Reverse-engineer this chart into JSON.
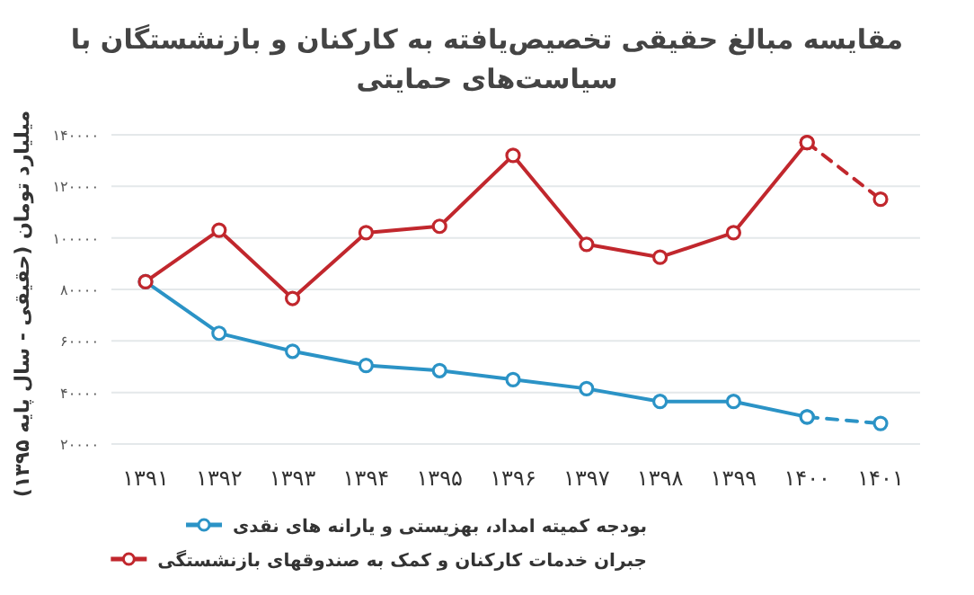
{
  "chart_data": {
    "type": "line",
    "title": "مقایسه مبالغ حقیقی تخصیص‌یافته به کارکنان و بازنشستگان با سیاست‌های حمایتی",
    "ylabel": "میلیارد تومان (حقیقی - سال پایه ۱۳۹۵)",
    "categories": [
      "۱۳۹۱",
      "۱۳۹۲",
      "۱۳۹۳",
      "۱۳۹۴",
      "۱۳۹۵",
      "۱۳۹۶",
      "۱۳۹۷",
      "۱۳۹۸",
      "۱۳۹۹",
      "۱۴۰۰",
      "۱۴۰۱"
    ],
    "ylim": [
      20000,
      140000
    ],
    "yticks": [
      {
        "value": 20000,
        "label": "۲۰۰۰۰"
      },
      {
        "value": 40000,
        "label": "۴۰۰۰۰"
      },
      {
        "value": 60000,
        "label": "۶۰۰۰۰"
      },
      {
        "value": 80000,
        "label": "۸۰۰۰۰"
      },
      {
        "value": 100000,
        "label": "۱۰۰۰۰۰"
      },
      {
        "value": 120000,
        "label": "۱۲۰۰۰۰"
      },
      {
        "value": 140000,
        "label": "۱۴۰۰۰۰"
      }
    ],
    "grid": "y",
    "legend": "bottom",
    "marker": "circle",
    "line_style": "solid",
    "series": [
      {
        "name": "بودجه کمیته امداد، بهزیستی و یارانه های نقدی",
        "color": "#2b93c6",
        "values": [
          83000,
          63000,
          56000,
          50500,
          48500,
          45000,
          41500,
          36500,
          36500,
          30500,
          null
        ]
      },
      {
        "color": "#2b93c6",
        "line_style": "dashed",
        "values": [
          null,
          null,
          null,
          null,
          null,
          null,
          null,
          null,
          null,
          30500,
          28000
        ]
      },
      {
        "name": "جبران خدمات کارکنان و کمک به صندوقهای بازنشستگی",
        "color": "#c1272d",
        "values": [
          83000,
          103000,
          76500,
          102000,
          104500,
          132000,
          97500,
          92500,
          102000,
          137000,
          null
        ]
      },
      {
        "color": "#c1272d",
        "line_style": "dashed",
        "values": [
          null,
          null,
          null,
          null,
          null,
          null,
          null,
          null,
          null,
          137000,
          115000
        ]
      }
    ]
  }
}
